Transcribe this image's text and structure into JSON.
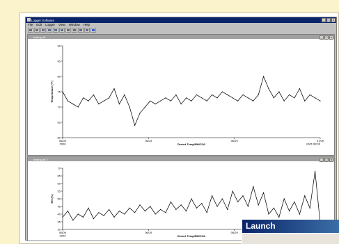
{
  "app": {
    "title": "Logger Software",
    "menus": [
      "File",
      "Edit",
      "Logger",
      "View",
      "Window",
      "Help"
    ],
    "window_buttons": [
      "_",
      "□",
      "x"
    ],
    "toolbar_icons": [
      "open-icon",
      "save-icon",
      "print-icon",
      "launch-icon",
      "readout-icon",
      "status-icon",
      "plot-icon",
      "zoom-icon",
      "select-icon",
      "cursor-icon",
      "help-icon"
    ]
  },
  "charts": [
    {
      "window_title": "testing.dtf",
      "chart_data": {
        "type": "line",
        "ylabel": "Temperature (°F)",
        "xlabel": "Desert Temp/RH/CO2",
        "yticks": [
          "90",
          "85",
          "80",
          "75",
          "70",
          "65",
          "60"
        ],
        "ylim": [
          60,
          90
        ],
        "xticks": [
          "06/09\n2000",
          "06/19",
          "06/29",
          "07/09"
        ],
        "x_end_label": "GMT-08:00",
        "x": [
          0,
          2,
          4,
          6,
          8,
          10,
          12,
          14,
          16,
          18,
          20,
          22,
          24,
          26,
          28,
          30,
          32,
          34,
          36,
          38,
          40,
          42,
          44,
          46,
          48,
          50,
          52,
          54,
          56,
          58,
          60,
          62,
          64,
          66,
          68,
          70,
          72,
          74,
          76,
          78,
          80,
          82,
          84,
          86,
          88,
          90,
          92,
          94,
          96,
          98,
          100
        ],
        "values": [
          75,
          72,
          71,
          70,
          73,
          72,
          74,
          71,
          72,
          73,
          76,
          71,
          74,
          70,
          64,
          68,
          70,
          72,
          71,
          72,
          73,
          72,
          74,
          71,
          73,
          72,
          74,
          73,
          72,
          74,
          73,
          75,
          74,
          73,
          72,
          74,
          73,
          72,
          74,
          80,
          76,
          73,
          75,
          72,
          74,
          73,
          76,
          72,
          74,
          73,
          72
        ]
      }
    },
    {
      "window_title": "testing.dtf 2",
      "chart_data": {
        "type": "line",
        "ylabel": "RH (%)",
        "xlabel": "Desert Temp/RH/CO2",
        "yticks": [
          "70",
          "65",
          "60",
          "55",
          "50",
          "45",
          "40",
          "35",
          "30"
        ],
        "ylim": [
          30,
          70
        ],
        "xticks": [
          "06/09\n2000",
          "06/19",
          "06/29"
        ],
        "x": [
          0,
          2,
          4,
          6,
          8,
          10,
          12,
          14,
          16,
          18,
          20,
          22,
          24,
          26,
          28,
          30,
          32,
          34,
          36,
          38,
          40,
          42,
          44,
          46,
          48,
          50,
          52,
          54,
          56,
          58,
          60,
          62,
          64,
          66,
          68,
          70,
          72,
          74,
          76,
          78,
          80,
          82,
          84,
          86,
          88,
          90,
          92,
          94,
          96,
          98,
          100
        ],
        "values": [
          38,
          42,
          36,
          40,
          38,
          44,
          37,
          41,
          39,
          43,
          38,
          42,
          40,
          44,
          41,
          46,
          42,
          45,
          40,
          43,
          41,
          48,
          43,
          46,
          42,
          50,
          44,
          47,
          41,
          52,
          45,
          50,
          43,
          55,
          48,
          52,
          45,
          58,
          46,
          54,
          40,
          44,
          38,
          50,
          42,
          48,
          40,
          52,
          44,
          68,
          34
        ]
      }
    }
  ],
  "launch": {
    "title": "Launch"
  }
}
